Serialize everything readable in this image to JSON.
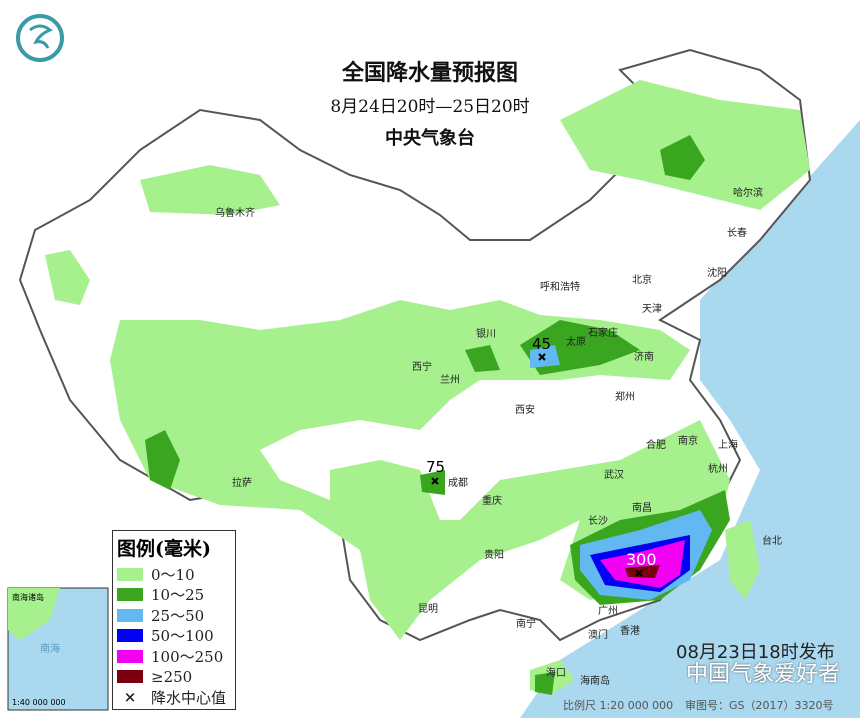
{
  "title": "全国降水量预报图",
  "subtitle": "8月24日20时—25日20时",
  "issuer": "中央气象台",
  "legend": {
    "title": "图例(毫米)",
    "items": [
      {
        "label": "0～10",
        "color": "#a6f08e"
      },
      {
        "label": "10～25",
        "color": "#3aa51f"
      },
      {
        "label": "25～50",
        "color": "#62b8f0"
      },
      {
        "label": "50～100",
        "color": "#0000f5"
      },
      {
        "label": "100～250",
        "color": "#f200f2"
      },
      {
        "label": "≥250",
        "color": "#7a0010"
      }
    ],
    "center_label": "降水中心值",
    "center_icon": "x-mark-icon"
  },
  "centers": [
    "45",
    "75",
    "300"
  ],
  "cities": [
    "乌鲁木齐",
    "哈尔滨",
    "长春",
    "沈阳",
    "呼和浩特",
    "北京",
    "天津",
    "石家庄",
    "太原",
    "济南",
    "银川",
    "西宁",
    "兰州",
    "西安",
    "郑州",
    "合肥",
    "南京",
    "上海",
    "武汉",
    "杭州",
    "成都",
    "重庆",
    "拉萨",
    "长沙",
    "南昌",
    "贵阳",
    "昆明",
    "南宁",
    "广州",
    "香港",
    "澳门",
    "海口",
    "台北",
    "海南岛"
  ],
  "inset": {
    "labels": [
      "南海诸岛",
      "南海"
    ],
    "scale": "1:40 000 000"
  },
  "issued": "08月23日18时发布",
  "scale": "比例尺 1:20 000 000",
  "map_no": "审图号：GS（2017）3320号",
  "watermark": "中国气象爱好者"
}
